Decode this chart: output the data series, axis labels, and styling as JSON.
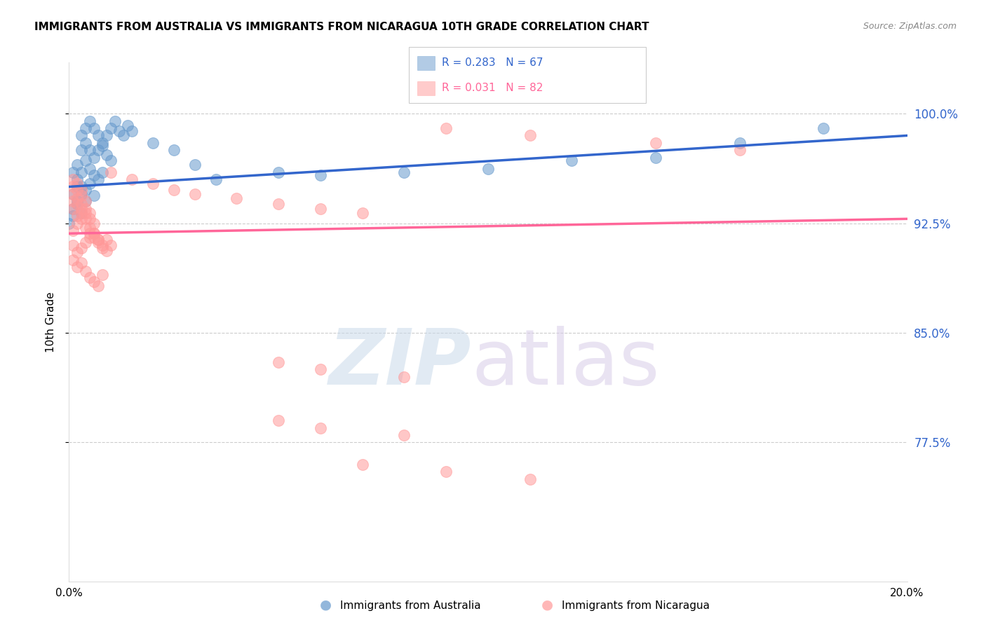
{
  "title": "IMMIGRANTS FROM AUSTRALIA VS IMMIGRANTS FROM NICARAGUA 10TH GRADE CORRELATION CHART",
  "source": "Source: ZipAtlas.com",
  "ylabel": "10th Grade",
  "ytick_labels": [
    "100.0%",
    "92.5%",
    "85.0%",
    "77.5%"
  ],
  "ytick_values": [
    1.0,
    0.925,
    0.85,
    0.775
  ],
  "xlim": [
    0.0,
    0.2
  ],
  "ylim": [
    0.68,
    1.035
  ],
  "blue_color": "#6699CC",
  "pink_color": "#FF9999",
  "line_blue": "#3366CC",
  "line_pink": "#FF6699",
  "australia_x": [
    0.003,
    0.004,
    0.005,
    0.006,
    0.007,
    0.008,
    0.009,
    0.01,
    0.011,
    0.012,
    0.003,
    0.004,
    0.005,
    0.006,
    0.007,
    0.008,
    0.009,
    0.01,
    0.002,
    0.003,
    0.004,
    0.005,
    0.006,
    0.007,
    0.008,
    0.002,
    0.003,
    0.004,
    0.005,
    0.006,
    0.001,
    0.002,
    0.003,
    0.004,
    0.001,
    0.002,
    0.003,
    0.001,
    0.002,
    0.001,
    0.0,
    0.013,
    0.014,
    0.015,
    0.02,
    0.025,
    0.03,
    0.035,
    0.05,
    0.06,
    0.08,
    0.1,
    0.12,
    0.14,
    0.16,
    0.18
  ],
  "australia_y": [
    0.985,
    0.99,
    0.995,
    0.99,
    0.985,
    0.98,
    0.985,
    0.99,
    0.995,
    0.988,
    0.975,
    0.98,
    0.975,
    0.97,
    0.975,
    0.978,
    0.972,
    0.968,
    0.965,
    0.96,
    0.968,
    0.962,
    0.958,
    0.955,
    0.96,
    0.95,
    0.945,
    0.948,
    0.952,
    0.944,
    0.935,
    0.938,
    0.932,
    0.94,
    0.96,
    0.955,
    0.95,
    0.945,
    0.94,
    0.93,
    0.925,
    0.985,
    0.992,
    0.988,
    0.98,
    0.975,
    0.965,
    0.955,
    0.96,
    0.958,
    0.96,
    0.962,
    0.968,
    0.97,
    0.98,
    0.99
  ],
  "nicaragua_x": [
    0.001,
    0.002,
    0.003,
    0.004,
    0.005,
    0.006,
    0.007,
    0.008,
    0.009,
    0.01,
    0.001,
    0.002,
    0.003,
    0.004,
    0.005,
    0.006,
    0.007,
    0.008,
    0.009,
    0.001,
    0.002,
    0.003,
    0.004,
    0.005,
    0.006,
    0.007,
    0.008,
    0.001,
    0.002,
    0.003,
    0.004,
    0.005,
    0.006,
    0.007,
    0.001,
    0.002,
    0.003,
    0.004,
    0.005,
    0.006,
    0.001,
    0.002,
    0.003,
    0.004,
    0.005,
    0.001,
    0.002,
    0.003,
    0.004,
    0.001,
    0.002,
    0.003,
    0.01,
    0.015,
    0.02,
    0.025,
    0.03,
    0.04,
    0.05,
    0.06,
    0.07,
    0.09,
    0.11,
    0.14,
    0.16,
    0.05,
    0.06,
    0.08,
    0.05,
    0.06,
    0.08,
    0.07,
    0.09,
    0.11
  ],
  "nicaragua_y": [
    0.92,
    0.925,
    0.928,
    0.922,
    0.918,
    0.915,
    0.912,
    0.908,
    0.914,
    0.91,
    0.91,
    0.905,
    0.908,
    0.912,
    0.915,
    0.918,
    0.914,
    0.91,
    0.906,
    0.9,
    0.895,
    0.898,
    0.892,
    0.888,
    0.885,
    0.882,
    0.89,
    0.935,
    0.93,
    0.932,
    0.928,
    0.922,
    0.918,
    0.914,
    0.94,
    0.938,
    0.935,
    0.932,
    0.928,
    0.925,
    0.945,
    0.942,
    0.938,
    0.935,
    0.932,
    0.95,
    0.948,
    0.944,
    0.94,
    0.955,
    0.952,
    0.948,
    0.96,
    0.955,
    0.952,
    0.948,
    0.945,
    0.942,
    0.938,
    0.935,
    0.932,
    0.99,
    0.985,
    0.98,
    0.975,
    0.83,
    0.825,
    0.82,
    0.79,
    0.785,
    0.78,
    0.76,
    0.755,
    0.75
  ],
  "blue_trendline_x": [
    0.0,
    0.2
  ],
  "blue_trendline_y": [
    0.95,
    0.985
  ],
  "pink_trendline_x": [
    0.0,
    0.2
  ],
  "pink_trendline_y": [
    0.918,
    0.928
  ]
}
